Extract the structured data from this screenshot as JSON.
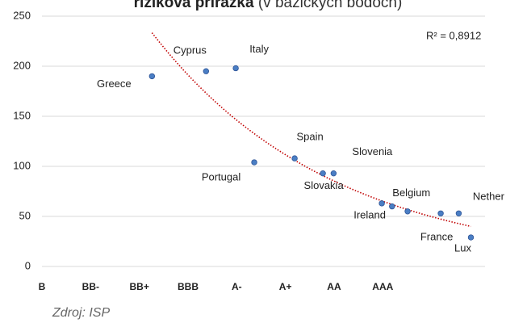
{
  "chart_data": {
    "type": "scatter",
    "title": "riziková prirážka",
    "subtitle": "(v bázických bodoch)",
    "x": [
      2.26,
      3.37,
      3.98,
      4.36,
      5.19,
      5.77,
      5.99,
      6.98,
      7.19,
      7.51,
      8.19,
      8.56,
      8.81
    ],
    "values": [
      190,
      195,
      198,
      104,
      108,
      93,
      93,
      63,
      60,
      55,
      53,
      53,
      29
    ],
    "labels": [
      "Greece",
      "Cyprus",
      "Italy",
      "Portugal",
      "Spain",
      "Slovakia",
      "Slovenia",
      "Ireland",
      "Belgium",
      null,
      "France",
      "Nether",
      "Lux"
    ],
    "color": "#4a7ec4",
    "trendline_color": "#c00000",
    "annotation": "R² = 0,8912",
    "source": "Zdroj: ISP",
    "xlim": [
      0,
      9.1
    ],
    "xticks": [
      {
        "value": 0,
        "label": "B"
      },
      {
        "value": 1,
        "label": "BB-"
      },
      {
        "value": 2,
        "label": "BB+"
      },
      {
        "value": 3,
        "label": "BBB"
      },
      {
        "value": 4,
        "label": "A-"
      },
      {
        "value": 5,
        "label": "A+"
      },
      {
        "value": 6,
        "label": "AA"
      },
      {
        "value": 7,
        "label": "AAA"
      }
    ],
    "ylim": [
      0,
      250
    ],
    "yticks": [
      0,
      50,
      100,
      150,
      200,
      250
    ],
    "grid": true
  }
}
